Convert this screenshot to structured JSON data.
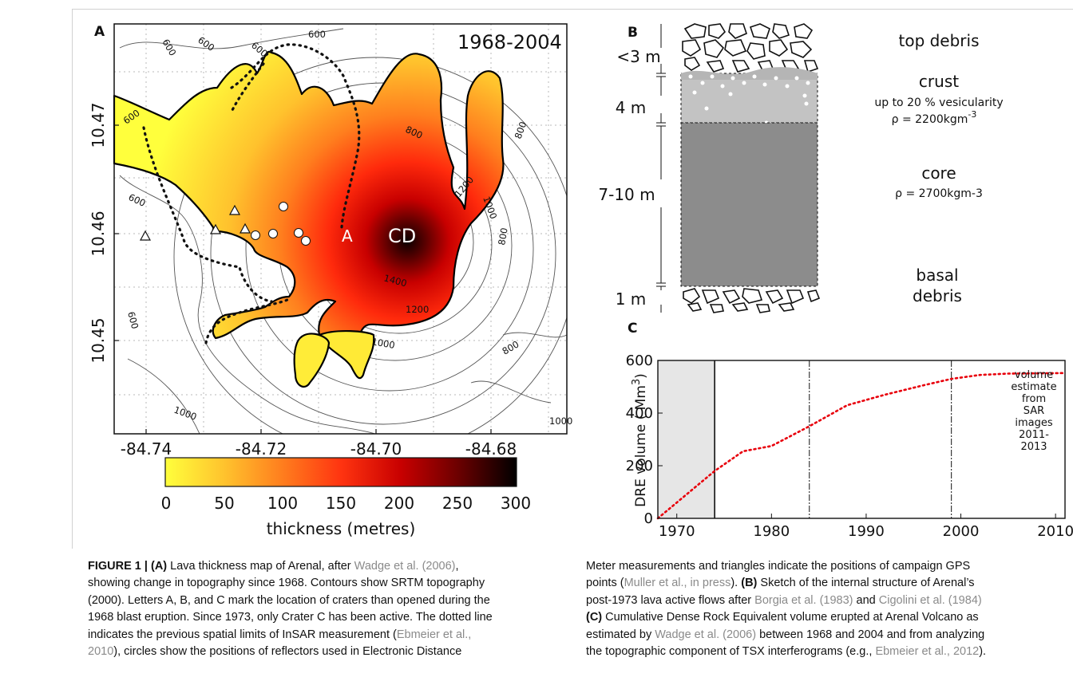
{
  "panel_a": {
    "letter": "A",
    "period": "1968-2004",
    "lat_ticks": [
      "10.47",
      "10.46",
      "10.45"
    ],
    "lon_ticks": [
      "-84.74",
      "-84.72",
      "-84.70",
      "-84.68"
    ],
    "crater_a": "A",
    "crater_cd": "CD",
    "contour_labels": [
      "600",
      "600",
      "600",
      "600",
      "600",
      "600",
      "600",
      "800",
      "800",
      "800",
      "800",
      "1000",
      "1000",
      "1000",
      "1000",
      "1200",
      "1200",
      "1400"
    ],
    "colorbar": {
      "ticks": [
        "0",
        "50",
        "100",
        "150",
        "200",
        "250",
        "300"
      ],
      "label": "thickness (metres)",
      "colors": [
        "#ffff3c",
        "#ffc22d",
        "#ff7f1e",
        "#ff3410",
        "#c80000",
        "#6e0000",
        "#000000"
      ]
    }
  },
  "panel_b": {
    "letter": "B",
    "depths": [
      "<3 m",
      "4 m",
      "7-10 m",
      "1 m"
    ],
    "layers": {
      "top_debris": "top debris",
      "crust": "crust",
      "crust_vesicularity": "up to 20 % vesicularity",
      "crust_density_prefix": "ρ = 2200kgm",
      "crust_density_exp": "-3",
      "core": "core",
      "core_density": "ρ = 2700kgm-3",
      "basal_1": "basal",
      "basal_2": "debris"
    },
    "colors": {
      "crust": "#c3c3c3",
      "core": "#8c8c8c"
    }
  },
  "panel_c": {
    "letter": "C"
  },
  "chart_data": {
    "type": "line",
    "ylabel_prefix": "DRE volume ( Mm",
    "ylabel_exp": "3",
    "ylabel_suffix": ")",
    "x_ticks": [
      1970,
      1980,
      1990,
      2000,
      2010
    ],
    "y_ticks": [
      0,
      200,
      400,
      600
    ],
    "xlim": [
      1968,
      2011
    ],
    "ylim": [
      0,
      600
    ],
    "series": [
      {
        "x": [
          1968,
          1970,
          1972,
          1974,
          1977,
          1980,
          1984,
          1988,
          1992,
          1996,
          1999,
          2002,
          2005,
          2011
        ],
        "values": [
          0,
          60,
          120,
          180,
          255,
          275,
          350,
          430,
          470,
          505,
          530,
          545,
          550,
          552
        ],
        "color": "#e8000b",
        "style": "dotted"
      }
    ],
    "shaded_span": [
      1968,
      1974
    ],
    "vlines": [
      1974,
      1984,
      1999
    ],
    "annotation": [
      "volume",
      "estimate",
      "from",
      "SAR",
      "images",
      "2011-",
      "2013"
    ]
  },
  "caption": {
    "left": [
      {
        "runs": [
          {
            "t": "FIGURE 1 | (A)",
            "s": "b"
          },
          {
            "t": " Lava thickness map of Arenal, after "
          },
          {
            "t": "Wadge et al. (2006)",
            "s": "ref"
          },
          {
            "t": ","
          }
        ]
      },
      {
        "runs": [
          {
            "t": "showing change in topography since 1968. Contours show SRTM topography"
          }
        ]
      },
      {
        "runs": [
          {
            "t": "(2000). Letters A, B, and C mark the location of craters than opened during the"
          }
        ]
      },
      {
        "runs": [
          {
            "t": "1968 blast eruption. Since 1973, only Crater C has been active. The dotted line"
          }
        ]
      },
      {
        "runs": [
          {
            "t": "indicates the previous spatial limits of InSAR measurement ("
          },
          {
            "t": "Ebmeier et al.,",
            "s": "ref"
          }
        ]
      },
      {
        "runs": [
          {
            "t": "2010",
            "s": "ref"
          },
          {
            "t": "), circles show the positions of reflectors used in Electronic Distance"
          }
        ]
      }
    ],
    "right": [
      {
        "runs": [
          {
            "t": "Meter measurements and triangles indicate the positions of campaign GPS"
          }
        ]
      },
      {
        "runs": [
          {
            "t": "points ("
          },
          {
            "t": "Muller et al., in press",
            "s": "ref"
          },
          {
            "t": "). "
          },
          {
            "t": "(B)",
            "s": "b"
          },
          {
            "t": " Sketch of the internal structure of Arenal’s"
          }
        ]
      },
      {
        "runs": [
          {
            "t": "post-1973 lava active flows after "
          },
          {
            "t": "Borgia et al. (1983)",
            "s": "ref"
          },
          {
            "t": " and "
          },
          {
            "t": "Cigolini et al. (1984)",
            "s": "ref"
          }
        ]
      },
      {
        "runs": [
          {
            "t": "(C)",
            "s": "b"
          },
          {
            "t": " Cumulative Dense Rock Equivalent volume erupted at Arenal Volcano as"
          }
        ]
      },
      {
        "runs": [
          {
            "t": "estimated by "
          },
          {
            "t": "Wadge et al. (2006)",
            "s": "ref"
          },
          {
            "t": " between 1968 and 2004 and from analyzing"
          }
        ]
      },
      {
        "runs": [
          {
            "t": "the topographic component of TSX interferograms (e.g., "
          },
          {
            "t": "Ebmeier et al., 2012",
            "s": "ref"
          },
          {
            "t": ")."
          }
        ]
      }
    ]
  }
}
